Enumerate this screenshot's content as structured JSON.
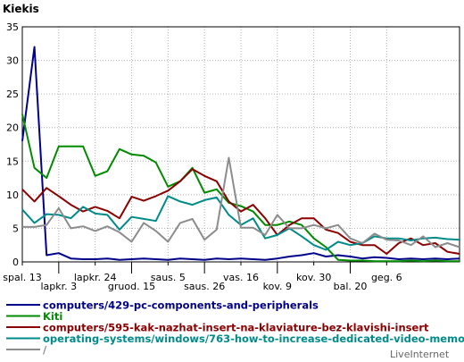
{
  "chart_data": {
    "type": "line",
    "title": "Kiekis",
    "ylim": [
      0,
      35
    ],
    "yticks": [
      0,
      5,
      10,
      15,
      20,
      25,
      30,
      35
    ],
    "grid": true,
    "legend_position": "bottom",
    "x_count": 37,
    "x_ticks": [
      {
        "i": 0,
        "label": "spal. 13",
        "row": 0
      },
      {
        "i": 3,
        "label": "lapkr. 3",
        "row": 1
      },
      {
        "i": 6,
        "label": "lapkr. 24",
        "row": 0
      },
      {
        "i": 9,
        "label": "gruod. 15",
        "row": 1
      },
      {
        "i": 12,
        "label": "saus. 5",
        "row": 0
      },
      {
        "i": 15,
        "label": "saus. 26",
        "row": 1
      },
      {
        "i": 18,
        "label": "vas. 16",
        "row": 0
      },
      {
        "i": 21,
        "label": "kov. 9",
        "row": 1
      },
      {
        "i": 24,
        "label": "kov. 30",
        "row": 0
      },
      {
        "i": 27,
        "label": "bal. 20",
        "row": 1
      },
      {
        "i": 30,
        "label": "geg. 6",
        "row": 0
      }
    ],
    "series": [
      {
        "name": "computers/429-pc-components-and-peripherals",
        "color": "#00008b",
        "values": [
          18,
          32,
          1,
          1.3,
          0.5,
          0.4,
          0.4,
          0.5,
          0.3,
          0.4,
          0.5,
          0.4,
          0.3,
          0.5,
          0.4,
          0.3,
          0.5,
          0.4,
          0.5,
          0.4,
          0.3,
          0.5,
          0.8,
          1,
          1.3,
          0.8,
          1,
          0.8,
          0.5,
          0.7,
          0.6,
          0.4,
          0.5,
          0.4,
          0.5,
          0.4,
          0.5
        ]
      },
      {
        "name": "Kiti",
        "color": "#008b00",
        "values": [
          22,
          14,
          12.5,
          17.2,
          17.2,
          17.2,
          12.8,
          13.5,
          16.8,
          16,
          15.8,
          14.8,
          11.2,
          12,
          14,
          10.3,
          10.8,
          8.8,
          8.3,
          7.5,
          5.5,
          5.5,
          6,
          5.5,
          3.5,
          2.2,
          0.3,
          0.2,
          0.2,
          0.1,
          0.1,
          0.1,
          0.2,
          0.1,
          0.2,
          0.1,
          0.1
        ]
      },
      {
        "name": "computers/595-kak-nazhat-insert-na-klaviature-bez-klavishi-insert",
        "color": "#8b0000",
        "values": [
          10.8,
          9,
          11,
          9.8,
          8.5,
          7.5,
          8.2,
          7.6,
          6.5,
          9.7,
          9.1,
          9.8,
          10.6,
          12,
          13.8,
          12.8,
          12,
          9,
          7.5,
          8.5,
          6.5,
          4,
          5.5,
          6.5,
          6.5,
          4.8,
          4.3,
          3,
          2.5,
          2.5,
          1.2,
          2.8,
          3.5,
          2.5,
          2.8,
          1.5,
          1.2
        ]
      },
      {
        "name": "operating-systems/windows/763-how-to-increase-dedicated-video-memory",
        "color": "#008b8b",
        "values": [
          7.8,
          5.8,
          7.1,
          7,
          6.5,
          8.2,
          7.2,
          7,
          4.8,
          6.7,
          6.4,
          6.1,
          9.8,
          9,
          8.5,
          9.2,
          9.6,
          7,
          5.5,
          6.5,
          3.5,
          4,
          5,
          3.8,
          2.5,
          1.8,
          3,
          2.5,
          2.8,
          3.8,
          3.5,
          3.5,
          3.2,
          3.5,
          3.6,
          3.4,
          3.3
        ]
      },
      {
        "name": "/",
        "color": "#8c8c8c",
        "values": [
          5.2,
          5.2,
          5.5,
          8,
          5,
          5.3,
          4.6,
          5.3,
          4.4,
          3,
          5.8,
          4.6,
          3,
          5.8,
          6.4,
          3.3,
          4.8,
          15.5,
          5.1,
          5.1,
          4,
          7,
          5,
          5,
          5.5,
          5,
          5.5,
          3.5,
          2.8,
          4.2,
          3.3,
          3.2,
          2.5,
          3.8,
          2.2,
          2.8,
          2.2
        ]
      }
    ]
  },
  "footer": {
    "brand": "LiveInternet"
  }
}
